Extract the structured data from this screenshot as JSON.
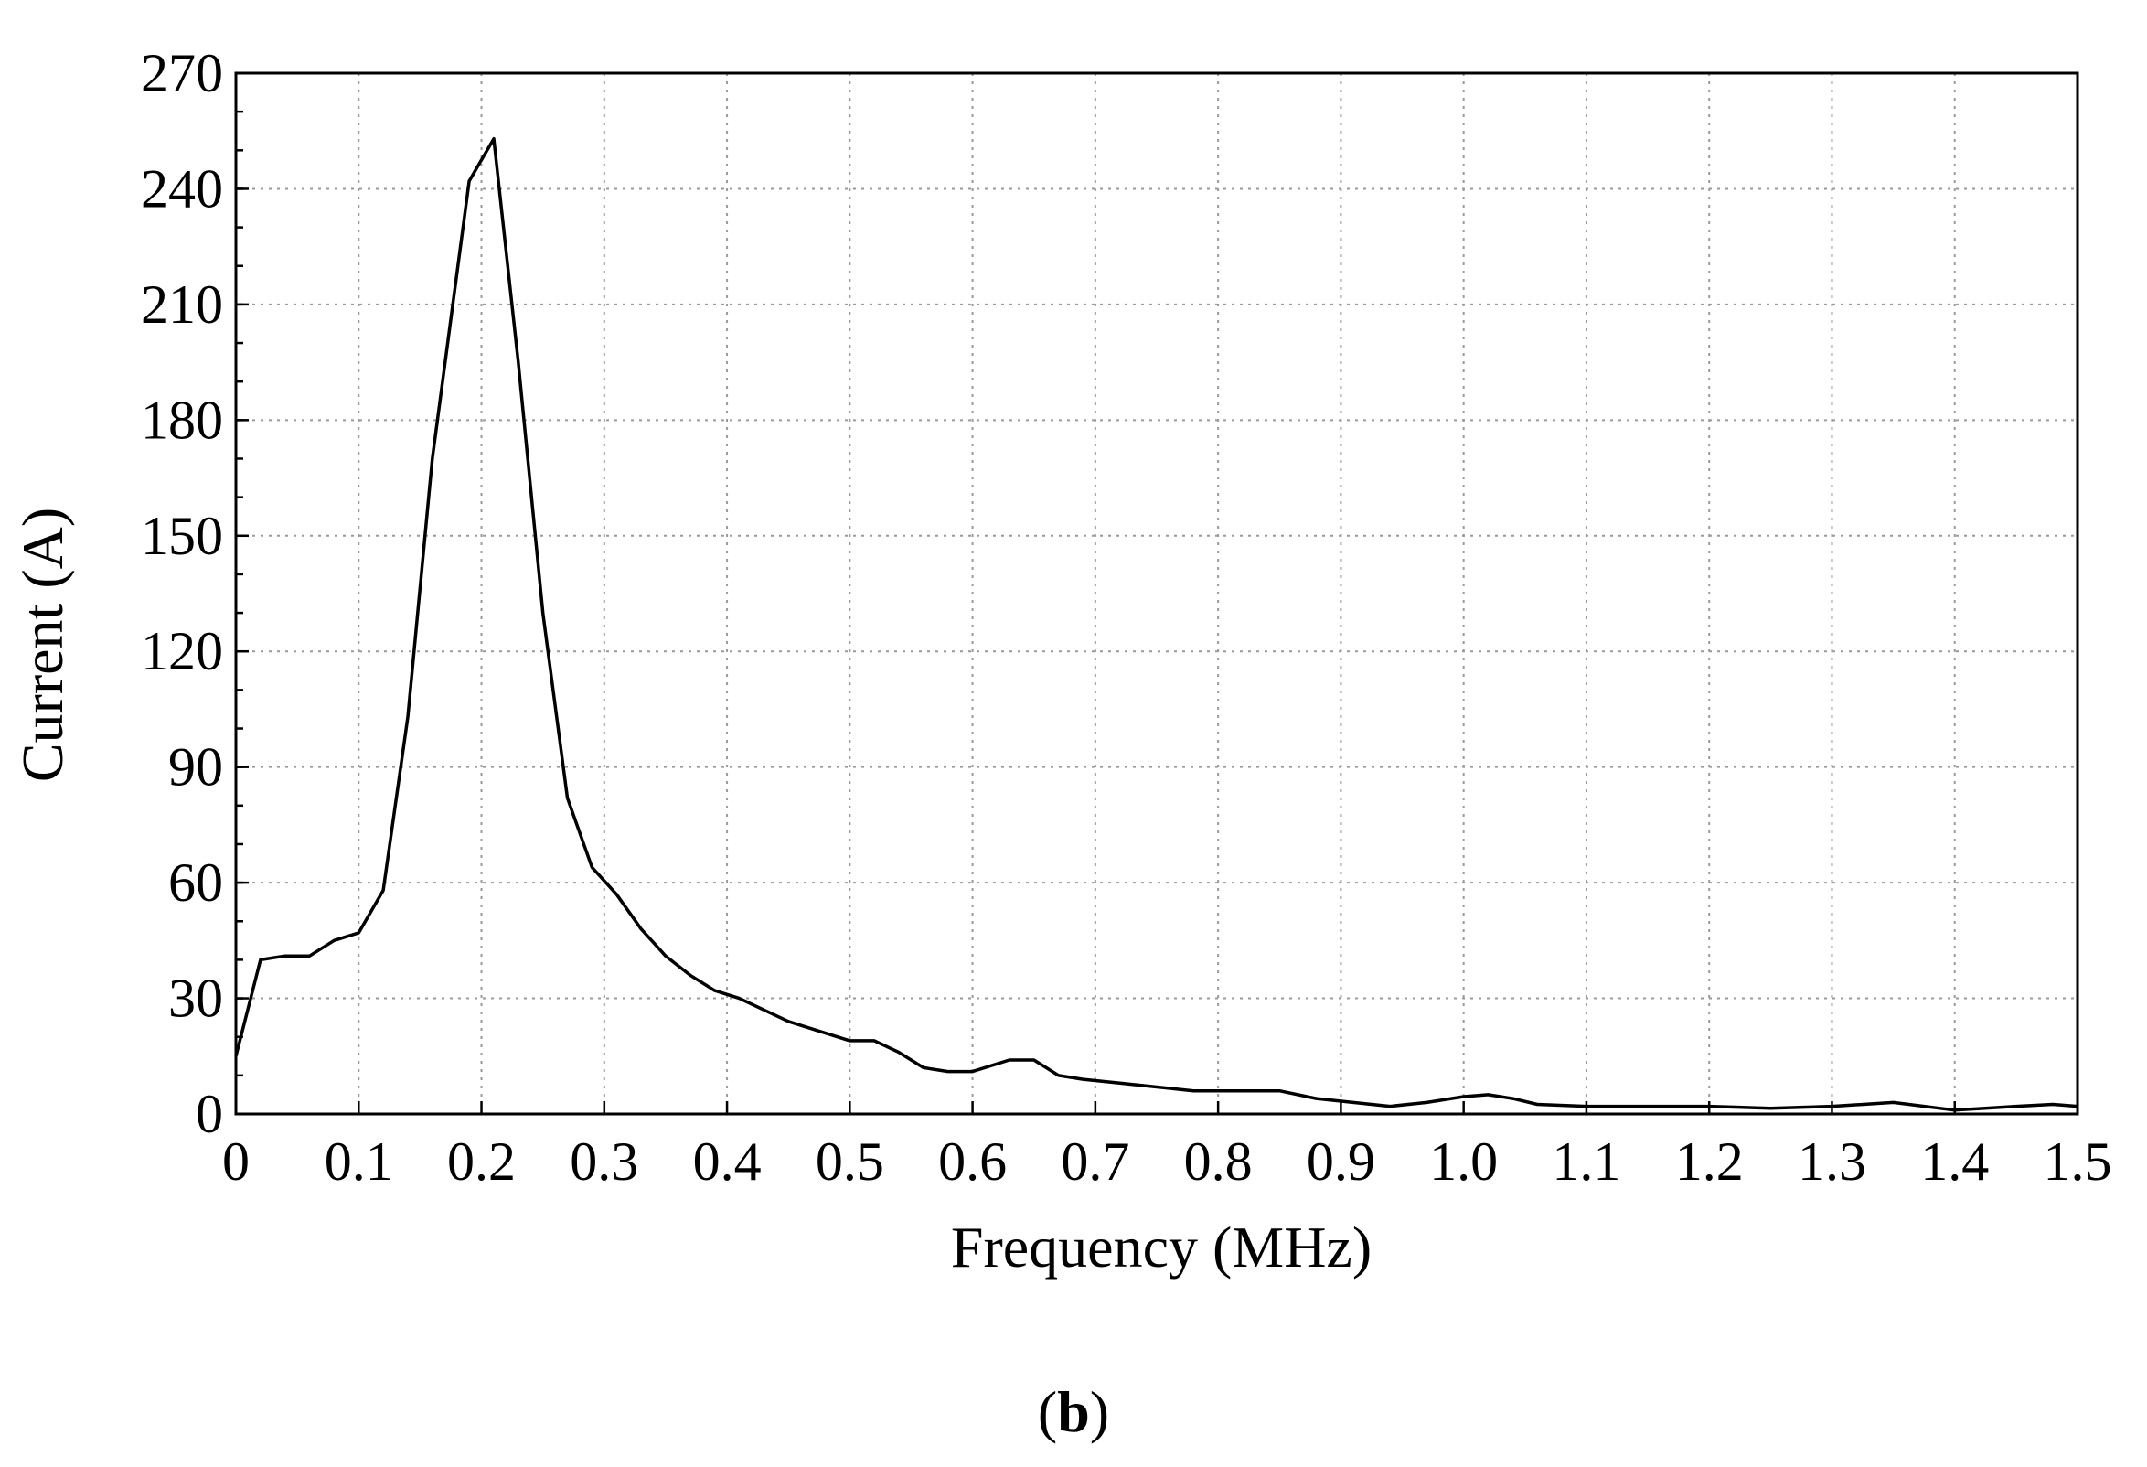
{
  "chart_data": {
    "type": "line",
    "xlabel": "Frequency (MHz)",
    "ylabel": "Current (A)",
    "xlim": [
      0,
      1.5
    ],
    "ylim": [
      0,
      270
    ],
    "grid": true,
    "x_ticks": [
      0,
      0.1,
      0.2,
      0.3,
      0.4,
      0.5,
      0.6,
      0.7,
      0.8,
      0.9,
      1.0,
      1.1,
      1.2,
      1.3,
      1.4,
      1.5
    ],
    "x_tick_labels": [
      "0",
      "0.1",
      "0.2",
      "0.3",
      "0.4",
      "0.5",
      "0.6",
      "0.7",
      "0.8",
      "0.9",
      "1.0",
      "1.1",
      "1.2",
      "1.3",
      "1.4",
      "1.5"
    ],
    "y_ticks": [
      0,
      30,
      60,
      90,
      120,
      150,
      180,
      210,
      240,
      270
    ],
    "y_tick_labels": [
      "0",
      "30",
      "60",
      "90",
      "120",
      "150",
      "180",
      "210",
      "240",
      "270"
    ],
    "series": [
      {
        "x": [
          0,
          0.02,
          0.04,
          0.06,
          0.08,
          0.1,
          0.12,
          0.14,
          0.16,
          0.19,
          0.21,
          0.23,
          0.25,
          0.27,
          0.29,
          0.31,
          0.33,
          0.35,
          0.37,
          0.39,
          0.41,
          0.43,
          0.45,
          0.47,
          0.5,
          0.52,
          0.54,
          0.56,
          0.58,
          0.6,
          0.63,
          0.65,
          0.67,
          0.69,
          0.72,
          0.75,
          0.78,
          0.8,
          0.85,
          0.88,
          0.91,
          0.94,
          0.97,
          1.0,
          1.02,
          1.04,
          1.06,
          1.1,
          1.15,
          1.2,
          1.25,
          1.3,
          1.35,
          1.4,
          1.45,
          1.48,
          1.5
        ],
        "y": [
          15,
          40,
          41,
          41,
          45,
          47,
          58,
          103,
          170,
          242,
          253,
          195,
          130,
          82,
          64,
          57,
          48,
          41,
          36,
          32,
          30,
          27,
          24,
          22,
          19,
          19,
          16,
          12,
          11,
          11,
          14,
          14,
          10,
          9,
          8,
          7,
          6,
          6,
          6,
          4,
          3,
          2,
          3,
          4.5,
          5,
          4,
          2.5,
          2,
          2,
          2,
          1.5,
          2,
          3,
          1,
          2,
          2.5,
          2
        ]
      }
    ]
  },
  "panel_label": {
    "open": "(",
    "letter": "b",
    "close": ")"
  }
}
